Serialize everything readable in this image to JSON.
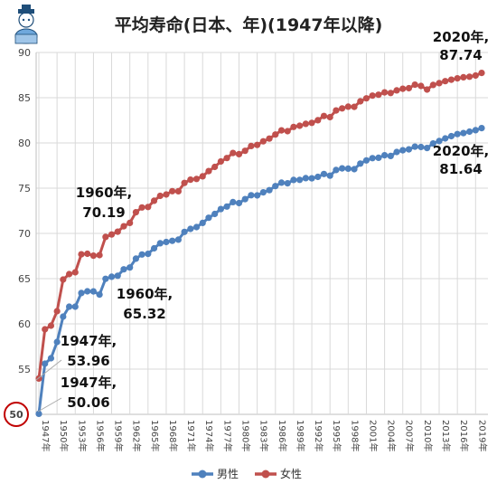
{
  "chart_data": {
    "type": "line",
    "title": "平均寿命(日本、年)(1947年以降)",
    "xlabel": "",
    "ylabel": "",
    "ylim": [
      50,
      90
    ],
    "yticks": [
      "50",
      "55",
      "60",
      "65",
      "70",
      "75",
      "80",
      "85",
      "90"
    ],
    "grid": true,
    "legend_position": "bottom",
    "x_tick_labels": [
      "1947年",
      "1950年",
      "1953年",
      "1956年",
      "1959年",
      "1962年",
      "1965年",
      "1968年",
      "1971年",
      "1974年",
      "1977年",
      "1980年",
      "1983年",
      "1986年",
      "1989年",
      "1992年",
      "1995年",
      "1998年",
      "2001年",
      "2004年",
      "2007年",
      "2010年",
      "2013年",
      "2016年",
      "2019年"
    ],
    "x": [
      1947,
      1948,
      1949,
      1950,
      1951,
      1952,
      1953,
      1954,
      1955,
      1956,
      1957,
      1958,
      1959,
      1960,
      1961,
      1962,
      1963,
      1964,
      1965,
      1966,
      1967,
      1968,
      1969,
      1970,
      1971,
      1972,
      1973,
      1974,
      1975,
      1976,
      1977,
      1978,
      1979,
      1980,
      1981,
      1982,
      1983,
      1984,
      1985,
      1986,
      1987,
      1988,
      1989,
      1990,
      1991,
      1992,
      1993,
      1994,
      1995,
      1996,
      1997,
      1998,
      1999,
      2000,
      2001,
      2002,
      2003,
      2004,
      2005,
      2006,
      2007,
      2008,
      2009,
      2010,
      2011,
      2012,
      2013,
      2014,
      2015,
      2016,
      2017,
      2018,
      2019,
      2020
    ],
    "series": [
      {
        "name": "男性",
        "color": "#4f81bd",
        "values": [
          50.06,
          55.6,
          56.2,
          58.0,
          60.8,
          61.9,
          61.9,
          63.41,
          63.6,
          63.59,
          63.24,
          64.98,
          65.21,
          65.32,
          66.03,
          66.23,
          67.21,
          67.67,
          67.74,
          68.35,
          68.91,
          69.05,
          69.18,
          69.31,
          70.17,
          70.5,
          70.7,
          71.16,
          71.73,
          72.15,
          72.69,
          72.97,
          73.46,
          73.35,
          73.79,
          74.22,
          74.2,
          74.54,
          74.78,
          75.23,
          75.61,
          75.54,
          75.91,
          75.92,
          76.11,
          76.09,
          76.25,
          76.57,
          76.38,
          77.01,
          77.19,
          77.16,
          77.1,
          77.72,
          78.07,
          78.32,
          78.36,
          78.64,
          78.56,
          79.0,
          79.19,
          79.29,
          79.59,
          79.55,
          79.44,
          79.94,
          80.21,
          80.5,
          80.75,
          80.98,
          81.09,
          81.25,
          81.41,
          81.64
        ]
      },
      {
        "name": "女性",
        "color": "#c0504d",
        "values": [
          53.96,
          59.4,
          59.8,
          61.4,
          64.9,
          65.5,
          65.7,
          67.69,
          67.75,
          67.54,
          67.6,
          69.61,
          69.88,
          70.19,
          70.79,
          71.16,
          72.34,
          72.87,
          72.92,
          73.61,
          74.15,
          74.3,
          74.67,
          74.66,
          75.58,
          75.94,
          76.02,
          76.31,
          76.89,
          77.35,
          77.95,
          78.33,
          78.89,
          78.76,
          79.13,
          79.66,
          79.78,
          80.18,
          80.48,
          80.93,
          81.39,
          81.3,
          81.77,
          81.9,
          82.11,
          82.22,
          82.51,
          82.98,
          82.85,
          83.59,
          83.82,
          84.01,
          83.99,
          84.6,
          84.93,
          85.23,
          85.33,
          85.59,
          85.52,
          85.81,
          85.99,
          86.05,
          86.44,
          86.3,
          85.9,
          86.41,
          86.61,
          86.83,
          86.99,
          87.14,
          87.26,
          87.32,
          87.45,
          87.74
        ]
      }
    ],
    "annotations": [
      {
        "line1": "2020年,",
        "line2": "87.74"
      },
      {
        "line1": "2020年,",
        "line2": "81.64"
      },
      {
        "line1": "1960年,",
        "line2": "70.19"
      },
      {
        "line1": "1960年,",
        "line2": "65.32"
      },
      {
        "line1": "1947年,",
        "line2": "53.96"
      },
      {
        "line1": "1947年,",
        "line2": "50.06"
      }
    ],
    "highlight": {
      "label": "50",
      "color": "#c00000"
    }
  }
}
